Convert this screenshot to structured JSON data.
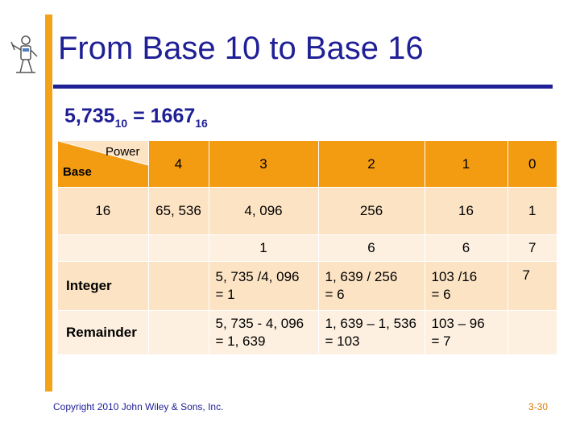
{
  "slide": {
    "title": "From Base 10 to Base 16",
    "equation": {
      "lhs": "5,735",
      "lhs_base": "10",
      "eq": " = ",
      "rhs": "1667",
      "rhs_base": "16"
    },
    "footer": "Copyright 2010 John Wiley & Sons, Inc.",
    "page_number": "3-30"
  },
  "table": {
    "corner_power": "Power",
    "corner_base": "Base",
    "powers": [
      "4",
      "3",
      "2",
      "1",
      "0"
    ],
    "base_label": "16",
    "base_values": [
      "65, 536",
      "4, 096",
      "256",
      "16",
      "1"
    ],
    "digits": [
      "",
      "1",
      "6",
      "6",
      "7"
    ],
    "integer_label": "Integer",
    "integer_calcs": [
      "",
      "5, 735 /4, 096\n= 1",
      "1, 639 / 256\n= 6",
      "103 /16\n = 6",
      "7"
    ],
    "remainder_label": "Remainder",
    "remainder_calcs": [
      "",
      "5, 735 - 4, 096\n= 1, 639",
      "1, 639 – 1, 536\n= 103",
      "103 – 96\n= 7",
      ""
    ]
  },
  "colors": {
    "accent_orange": "#f39c12",
    "title_blue": "#1f1f96",
    "row_light": "#fce3c4",
    "row_lighter": "#fdf0e0"
  }
}
